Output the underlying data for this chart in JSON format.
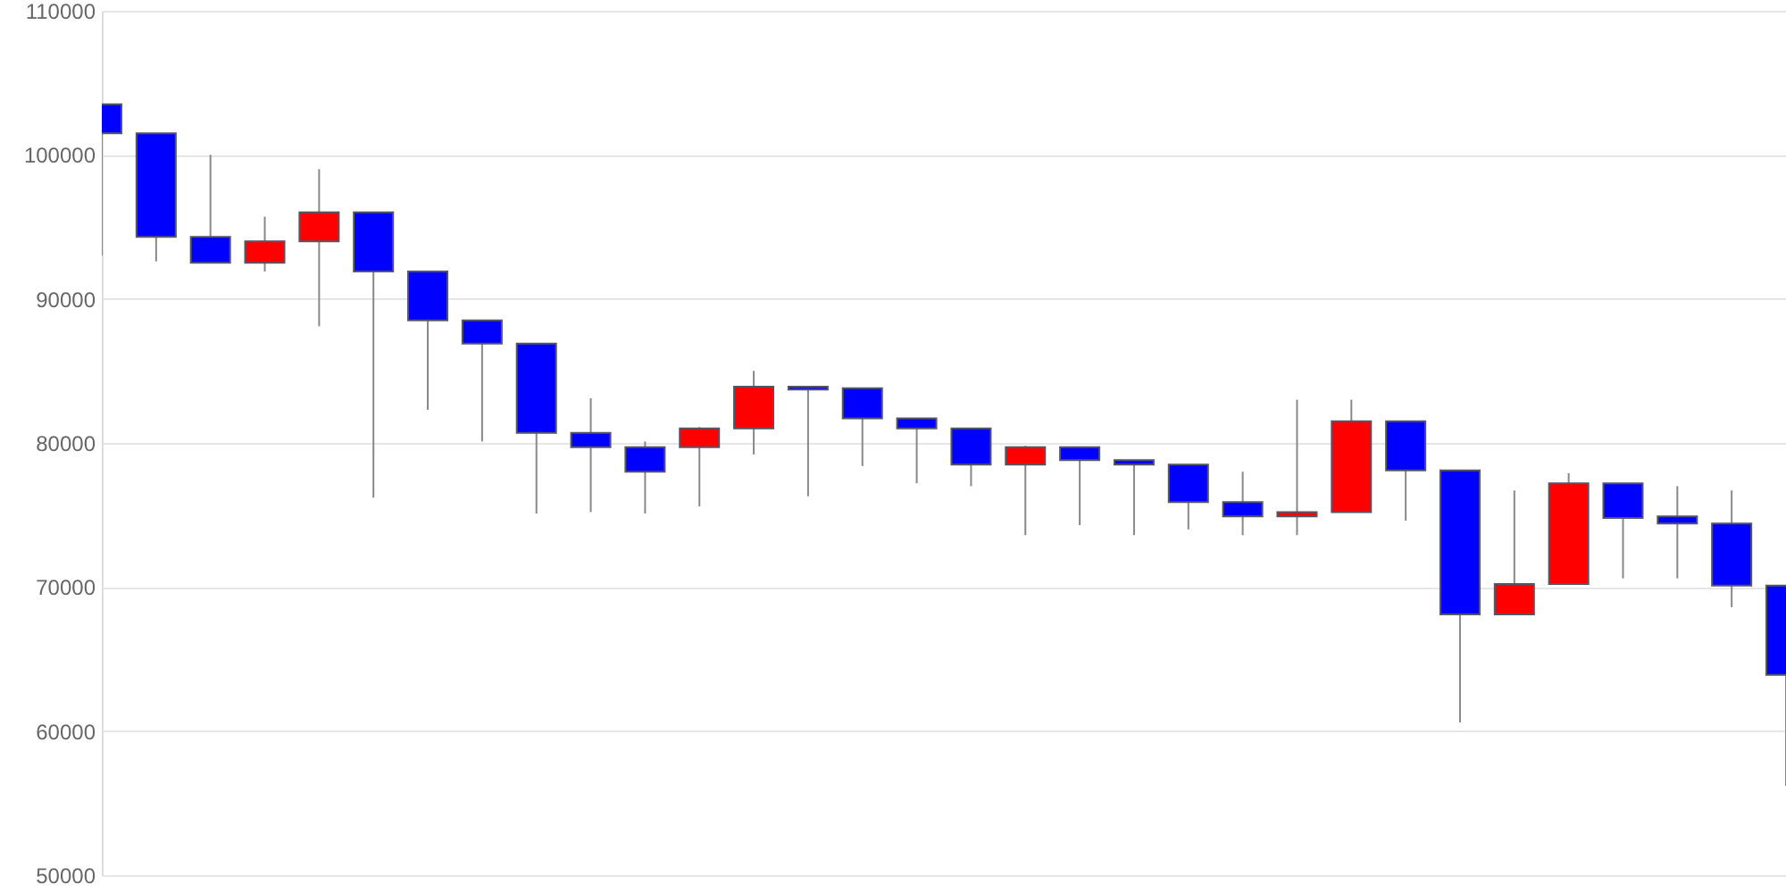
{
  "chart_data": {
    "type": "candlestick",
    "categories": [
      null,
      null,
      null,
      null,
      null,
      null,
      null,
      null,
      null,
      null,
      null,
      null,
      null,
      null,
      null,
      null,
      null,
      null,
      null,
      null,
      null,
      null,
      null,
      null,
      null,
      null,
      null,
      null,
      null,
      null,
      null,
      null
    ],
    "ohlc": [
      [
        103500,
        103500,
        93000,
        101500
      ],
      [
        101500,
        101500,
        92600,
        94300
      ],
      [
        94300,
        100000,
        92500,
        92500
      ],
      [
        92500,
        95700,
        91900,
        94000
      ],
      [
        94000,
        99000,
        88100,
        96000
      ],
      [
        96000,
        96000,
        76200,
        91900
      ],
      [
        91900,
        91900,
        82300,
        88500
      ],
      [
        88500,
        88500,
        80100,
        86900
      ],
      [
        86900,
        86900,
        75100,
        80700
      ],
      [
        80700,
        83100,
        75200,
        79700
      ],
      [
        79700,
        80100,
        75100,
        78000
      ],
      [
        79700,
        81100,
        75600,
        81000
      ],
      [
        81000,
        85000,
        79200,
        83900
      ],
      [
        83900,
        83900,
        76300,
        83700
      ],
      [
        83800,
        83800,
        78400,
        81700
      ],
      [
        81700,
        81700,
        77200,
        81000
      ],
      [
        81000,
        81000,
        77000,
        78500
      ],
      [
        78500,
        79800,
        73600,
        79700
      ],
      [
        79700,
        79700,
        74300,
        78800
      ],
      [
        78800,
        78800,
        73600,
        78500
      ],
      [
        78500,
        78500,
        74000,
        75900
      ],
      [
        75900,
        78000,
        73600,
        74900
      ],
      [
        74900,
        83000,
        73600,
        75200
      ],
      [
        75200,
        83000,
        75200,
        81500
      ],
      [
        81500,
        81500,
        74600,
        78100
      ],
      [
        78100,
        78100,
        60600,
        68100
      ],
      [
        68100,
        76700,
        68100,
        70200
      ],
      [
        70200,
        77900,
        70200,
        77200
      ],
      [
        77200,
        77200,
        70600,
        74800
      ],
      [
        74900,
        77000,
        70600,
        74400
      ],
      [
        74400,
        76700,
        68600,
        70100
      ],
      [
        70100,
        70100,
        56200,
        63900
      ]
    ],
    "colors": [
      "#0000ff",
      "#0000ff",
      "#0000ff",
      "#ff0000",
      "#ff0000",
      "#0000ff",
      "#0000ff",
      "#0000ff",
      "#0000ff",
      "#0000ff",
      "#0000ff",
      "#ff0000",
      "#ff0000",
      "#0000ff",
      "#0000ff",
      "#0000ff",
      "#0000ff",
      "#ff0000",
      "#0000ff",
      "#0000ff",
      "#0000ff",
      "#0000ff",
      "#ff0000",
      "#ff0000",
      "#0000ff",
      "#0000ff",
      "#ff0000",
      "#ff0000",
      "#0000ff",
      "#0000ff",
      "#0000ff",
      "#0000ff"
    ],
    "ylim": [
      50000,
      110000
    ],
    "yticks": [
      50000,
      60000,
      70000,
      80000,
      90000,
      100000,
      110000
    ],
    "grid": "y",
    "tick_labels": "y"
  }
}
